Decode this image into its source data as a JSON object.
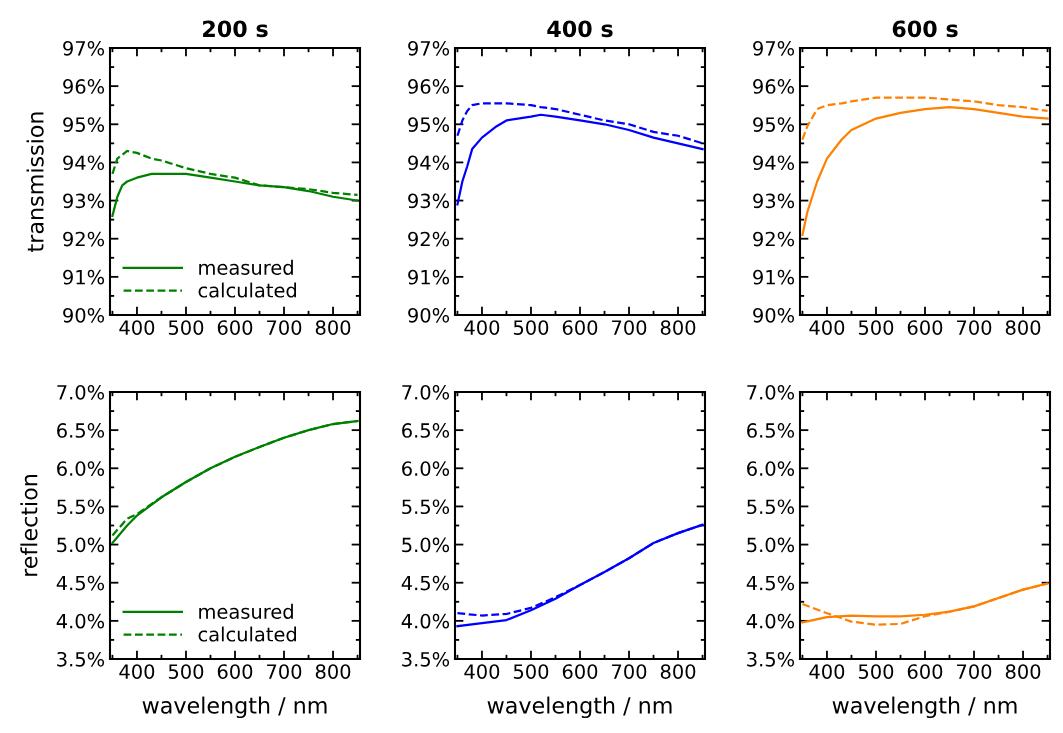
{
  "chart_data": [
    {
      "type": "line",
      "title": "200 s",
      "ylabel": "transmission",
      "x": [
        350,
        360,
        370,
        380,
        400,
        430,
        450,
        500,
        550,
        600,
        650,
        700,
        750,
        800,
        850
      ],
      "xlim": [
        345,
        855
      ],
      "xticks": [
        400,
        500,
        600,
        700,
        800
      ],
      "ylim": [
        90,
        97
      ],
      "yticks": [
        {
          "value": 90,
          "label": "90%"
        },
        {
          "value": 91,
          "label": "91%"
        },
        {
          "value": 92,
          "label": "92%"
        },
        {
          "value": 93,
          "label": "93%"
        },
        {
          "value": 94,
          "label": "94%"
        },
        {
          "value": 95,
          "label": "95%"
        },
        {
          "value": 96,
          "label": "96%"
        },
        {
          "value": 97,
          "label": "97%"
        }
      ],
      "legend": "bottom left",
      "grid": false,
      "series": [
        {
          "name": "measured",
          "color": "#008000",
          "line_style": "solid",
          "values": [
            92.6,
            93.1,
            93.4,
            93.5,
            93.6,
            93.7,
            93.7,
            93.7,
            93.6,
            93.5,
            93.4,
            93.35,
            93.25,
            93.1,
            93.0
          ]
        },
        {
          "name": "calculated",
          "color": "#008000",
          "line_style": "dashed",
          "values": [
            93.7,
            94.1,
            94.2,
            94.3,
            94.25,
            94.1,
            94.05,
            93.85,
            93.7,
            93.6,
            93.4,
            93.35,
            93.3,
            93.2,
            93.15
          ]
        }
      ]
    },
    {
      "type": "line",
      "title": "400 s",
      "x": [
        350,
        360,
        370,
        380,
        400,
        430,
        450,
        500,
        520,
        550,
        600,
        650,
        700,
        750,
        800,
        850
      ],
      "xlim": [
        345,
        855
      ],
      "xticks": [
        400,
        500,
        600,
        700,
        800
      ],
      "ylim": [
        90,
        97
      ],
      "yticks": [
        {
          "value": 90,
          "label": "90%"
        },
        {
          "value": 91,
          "label": "91%"
        },
        {
          "value": 92,
          "label": "92%"
        },
        {
          "value": 93,
          "label": "93%"
        },
        {
          "value": 94,
          "label": "94%"
        },
        {
          "value": 95,
          "label": "95%"
        },
        {
          "value": 96,
          "label": "96%"
        },
        {
          "value": 97,
          "label": "97%"
        }
      ],
      "grid": false,
      "series": [
        {
          "color": "#0000ff",
          "line_style": "solid",
          "values": [
            92.9,
            93.5,
            93.9,
            94.35,
            94.65,
            94.95,
            95.1,
            95.2,
            95.25,
            95.2,
            95.1,
            95.0,
            94.85,
            94.65,
            94.5,
            94.35
          ]
        },
        {
          "color": "#0000ff",
          "line_style": "dashed",
          "values": [
            94.7,
            95.1,
            95.35,
            95.5,
            95.55,
            95.55,
            95.55,
            95.5,
            95.45,
            95.4,
            95.25,
            95.1,
            95.0,
            94.8,
            94.7,
            94.5
          ]
        }
      ]
    },
    {
      "type": "line",
      "title": "600 s",
      "x": [
        350,
        360,
        380,
        400,
        430,
        450,
        500,
        550,
        600,
        650,
        700,
        750,
        800,
        850
      ],
      "xlim": [
        345,
        855
      ],
      "xticks": [
        400,
        500,
        600,
        700,
        800
      ],
      "ylim": [
        90,
        97
      ],
      "yticks": [
        {
          "value": 90,
          "label": "90%"
        },
        {
          "value": 91,
          "label": "91%"
        },
        {
          "value": 92,
          "label": "92%"
        },
        {
          "value": 93,
          "label": "93%"
        },
        {
          "value": 94,
          "label": "94%"
        },
        {
          "value": 95,
          "label": "95%"
        },
        {
          "value": 96,
          "label": "96%"
        },
        {
          "value": 97,
          "label": "97%"
        }
      ],
      "grid": false,
      "series": [
        {
          "color": "#ff8000",
          "line_style": "solid",
          "values": [
            92.1,
            92.7,
            93.5,
            94.1,
            94.6,
            94.85,
            95.15,
            95.3,
            95.4,
            95.45,
            95.4,
            95.3,
            95.2,
            95.15
          ]
        },
        {
          "color": "#ff8000",
          "line_style": "dashed",
          "values": [
            94.6,
            94.95,
            95.4,
            95.5,
            95.55,
            95.6,
            95.7,
            95.7,
            95.7,
            95.65,
            95.6,
            95.5,
            95.45,
            95.35
          ]
        }
      ]
    },
    {
      "type": "line",
      "ylabel": "reflection",
      "xlabel": "wavelength / nm",
      "x": [
        350,
        380,
        400,
        450,
        500,
        550,
        600,
        650,
        700,
        750,
        800,
        850
      ],
      "xlim": [
        345,
        855
      ],
      "xticks": [
        400,
        500,
        600,
        700,
        800
      ],
      "ylim": [
        3.5,
        7.0
      ],
      "yticks": [
        {
          "value": 3.5,
          "label": "3.5%"
        },
        {
          "value": 4.0,
          "label": "4.0%"
        },
        {
          "value": 4.5,
          "label": "4.5%"
        },
        {
          "value": 5.0,
          "label": "5.0%"
        },
        {
          "value": 5.5,
          "label": "5.5%"
        },
        {
          "value": 6.0,
          "label": "6.0%"
        },
        {
          "value": 6.5,
          "label": "6.5%"
        },
        {
          "value": 7.0,
          "label": "7.0%"
        }
      ],
      "legend": "bottom left",
      "grid": false,
      "series": [
        {
          "name": "measured",
          "color": "#008000",
          "line_style": "solid",
          "values": [
            5.02,
            5.25,
            5.38,
            5.62,
            5.82,
            6.0,
            6.15,
            6.28,
            6.4,
            6.5,
            6.58,
            6.62
          ]
        },
        {
          "name": "calculated",
          "color": "#008000",
          "line_style": "dashed",
          "values": [
            5.12,
            5.34,
            5.4,
            5.62,
            5.82,
            6.0,
            6.15,
            6.28,
            6.4,
            6.5,
            6.58,
            6.62
          ]
        }
      ]
    },
    {
      "type": "line",
      "xlabel": "wavelength / nm",
      "x": [
        350,
        400,
        450,
        500,
        550,
        600,
        650,
        700,
        750,
        800,
        850
      ],
      "xlim": [
        345,
        855
      ],
      "xticks": [
        400,
        500,
        600,
        700,
        800
      ],
      "ylim": [
        3.5,
        7.0
      ],
      "yticks": [
        {
          "value": 3.5,
          "label": "3.5%"
        },
        {
          "value": 4.0,
          "label": "4.0%"
        },
        {
          "value": 4.5,
          "label": "4.5%"
        },
        {
          "value": 5.0,
          "label": "5.0%"
        },
        {
          "value": 5.5,
          "label": "5.5%"
        },
        {
          "value": 6.0,
          "label": "6.0%"
        },
        {
          "value": 6.5,
          "label": "6.5%"
        },
        {
          "value": 7.0,
          "label": "7.0%"
        }
      ],
      "grid": false,
      "series": [
        {
          "color": "#0000ff",
          "line_style": "solid",
          "values": [
            3.93,
            3.97,
            4.01,
            4.14,
            4.29,
            4.47,
            4.64,
            4.82,
            5.02,
            5.15,
            5.26
          ]
        },
        {
          "color": "#0000ff",
          "line_style": "dashed",
          "values": [
            4.1,
            4.07,
            4.09,
            4.17,
            4.31,
            4.47,
            4.64,
            4.82,
            5.02,
            5.15,
            5.26
          ]
        }
      ]
    },
    {
      "type": "line",
      "xlabel": "wavelength / nm",
      "x": [
        350,
        400,
        450,
        500,
        550,
        600,
        650,
        700,
        750,
        800,
        850
      ],
      "xlim": [
        345,
        855
      ],
      "xticks": [
        400,
        500,
        600,
        700,
        800
      ],
      "ylim": [
        3.5,
        7.0
      ],
      "yticks": [
        {
          "value": 3.5,
          "label": "3.5%"
        },
        {
          "value": 4.0,
          "label": "4.0%"
        },
        {
          "value": 4.5,
          "label": "4.5%"
        },
        {
          "value": 5.0,
          "label": "5.0%"
        },
        {
          "value": 5.5,
          "label": "5.5%"
        },
        {
          "value": 6.0,
          "label": "6.0%"
        },
        {
          "value": 6.5,
          "label": "6.5%"
        },
        {
          "value": 7.0,
          "label": "7.0%"
        }
      ],
      "grid": false,
      "series": [
        {
          "color": "#ff8000",
          "line_style": "solid",
          "values": [
            3.98,
            4.05,
            4.07,
            4.06,
            4.06,
            4.08,
            4.12,
            4.19,
            4.3,
            4.41,
            4.49
          ]
        },
        {
          "color": "#ff8000",
          "line_style": "dashed",
          "values": [
            4.22,
            4.1,
            3.99,
            3.95,
            3.96,
            4.06,
            4.12,
            4.19,
            4.3,
            4.41,
            4.49
          ]
        }
      ]
    }
  ]
}
